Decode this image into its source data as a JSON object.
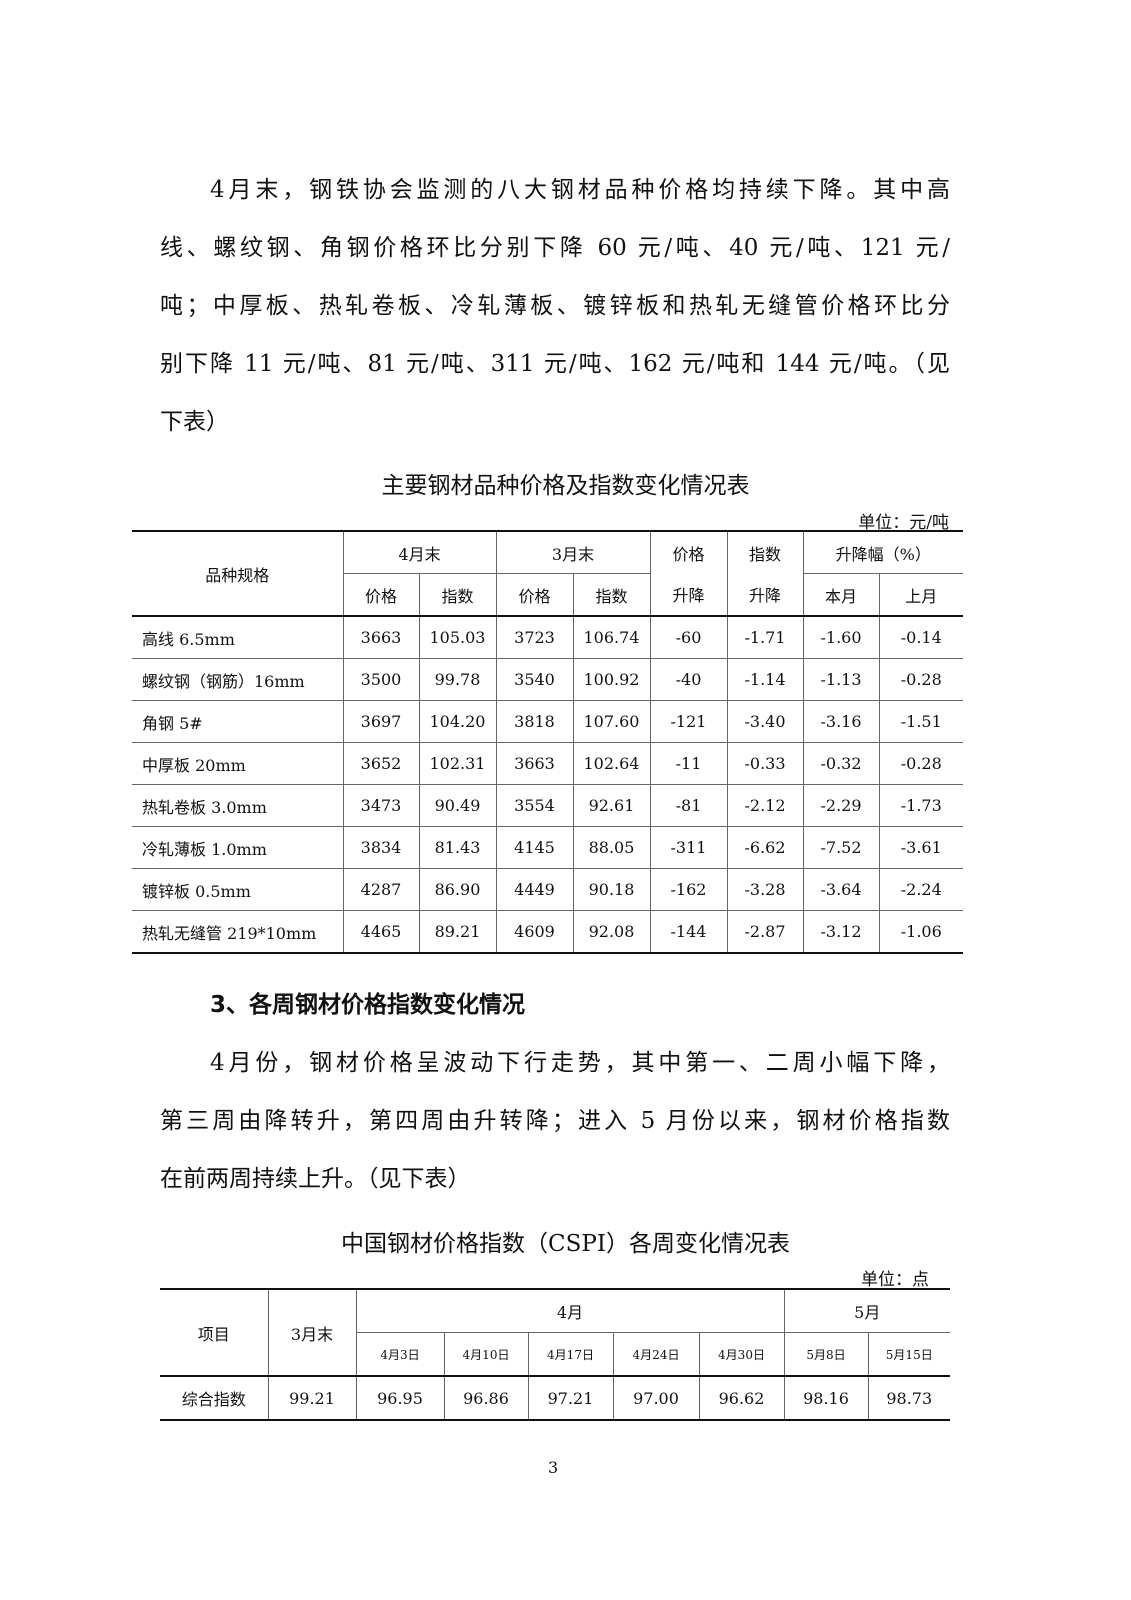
{
  "para1": [
    "4月末，钢铁协会监测的八大钢材品种价格均持续下降。其中高",
    "线、螺纹钢、角钢价格环比分别下降 60 元/吨、40 元/吨、121 元/",
    "吨；中厚板、热轧卷板、冷轧薄板、镀锌板和热轧无缝管价格环比分",
    "别下降 11 元/吨、81 元/吨、311 元/吨、162 元/吨和 144 元/吨。（见",
    "下表）"
  ],
  "table1": {
    "title": "主要钢材品种价格及指数变化情况表",
    "unit": "单位：元/吨",
    "header": {
      "spec": "品种规格",
      "apr_end": "4月末",
      "mar_end": "3月末",
      "price_change_1": "价格",
      "price_change_2": "升降",
      "index_change_1": "指数",
      "index_change_2": "升降",
      "pct_change": "升降幅（%）",
      "price": "价格",
      "index": "指数",
      "this_month": "本月",
      "last_month": "上月"
    },
    "rows": [
      [
        "高线 6.5mm",
        "3663",
        "105.03",
        "3723",
        "106.74",
        "-60",
        "-1.71",
        "-1.60",
        "-0.14"
      ],
      [
        "螺纹钢（钢筋）16mm",
        "3500",
        "99.78",
        "3540",
        "100.92",
        "-40",
        "-1.14",
        "-1.13",
        "-0.28"
      ],
      [
        "角钢 5#",
        "3697",
        "104.20",
        "3818",
        "107.60",
        "-121",
        "-3.40",
        "-3.16",
        "-1.51"
      ],
      [
        "中厚板 20mm",
        "3652",
        "102.31",
        "3663",
        "102.64",
        "-11",
        "-0.33",
        "-0.32",
        "-0.28"
      ],
      [
        "热轧卷板 3.0mm",
        "3473",
        "90.49",
        "3554",
        "92.61",
        "-81",
        "-2.12",
        "-2.29",
        "-1.73"
      ],
      [
        "冷轧薄板 1.0mm",
        "3834",
        "81.43",
        "4145",
        "88.05",
        "-311",
        "-6.62",
        "-7.52",
        "-3.61"
      ],
      [
        "镀锌板 0.5mm",
        "4287",
        "86.90",
        "4449",
        "90.18",
        "-162",
        "-3.28",
        "-3.64",
        "-2.24"
      ],
      [
        "热轧无缝管 219*10mm",
        "4465",
        "89.21",
        "4609",
        "92.08",
        "-144",
        "-2.87",
        "-3.12",
        "-1.06"
      ]
    ]
  },
  "heading3": "3、各周钢材价格指数变化情况",
  "para2": [
    "4月份，钢材价格呈波动下行走势，其中第一、二周小幅下降，",
    "第三周由降转升，第四周由升转降；进入 5 月份以来，钢材价格指数",
    "在前两周持续上升。（见下表）"
  ],
  "table2": {
    "title": "中国钢材价格指数（CSPI）各周变化情况表",
    "unit": "单位：点",
    "header": {
      "item": "项目",
      "mar_end": "3月末",
      "apr": "4月",
      "may": "5月",
      "dates": [
        "4月3日",
        "4月10日",
        "4月17日",
        "4月24日",
        "4月30日",
        "5月8日",
        "5月15日"
      ]
    },
    "row": {
      "label": "综合指数",
      "values": [
        "99.21",
        "96.95",
        "96.86",
        "97.21",
        "97.00",
        "96.62",
        "98.16",
        "98.73"
      ]
    }
  },
  "page_number": "3"
}
